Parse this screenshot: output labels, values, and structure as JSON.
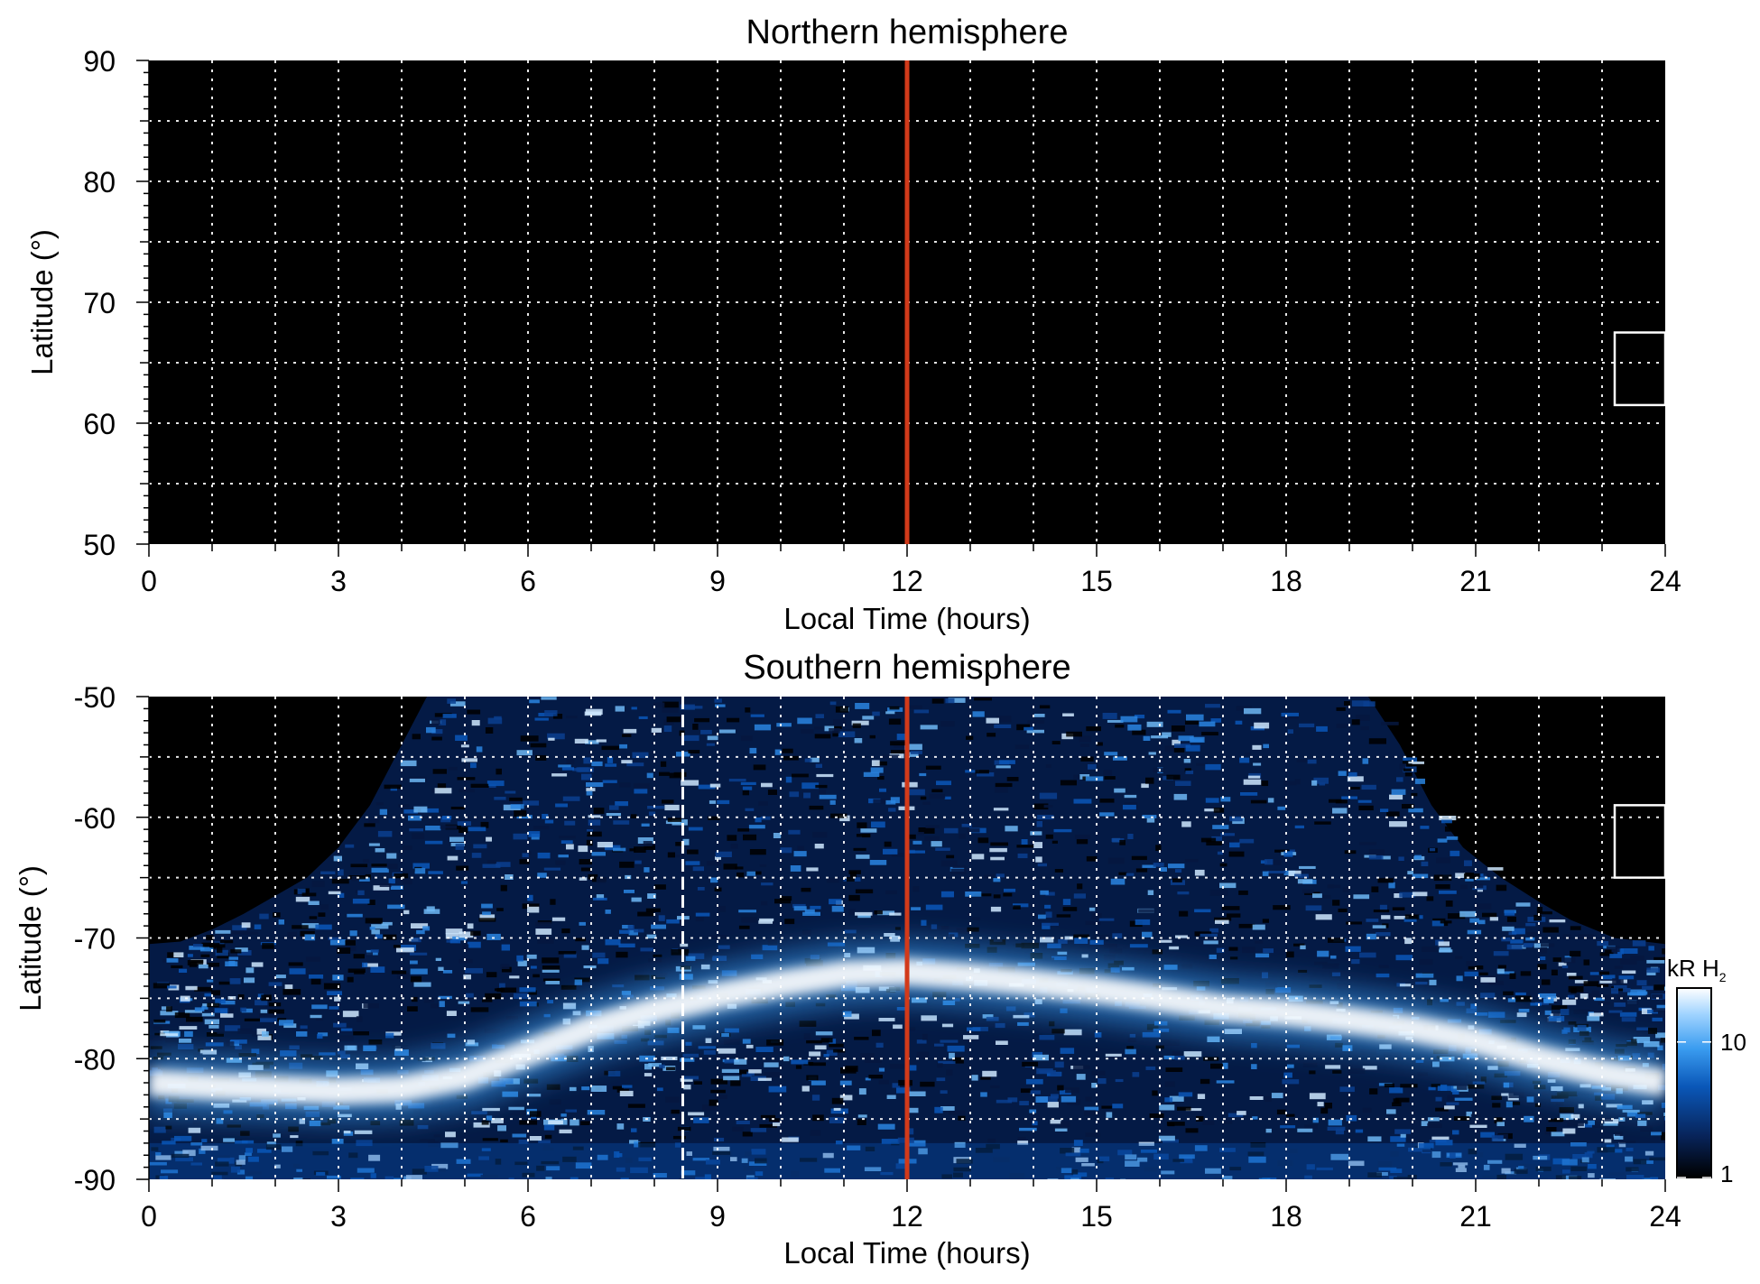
{
  "chart_data": [
    {
      "type": "heatmap",
      "title": "Northern hemisphere",
      "xlabel": "Local Time (hours)",
      "ylabel": "Latitude (°)",
      "xlim": [
        0,
        24
      ],
      "ylim": [
        50,
        90
      ],
      "xticks": [
        "0",
        "3",
        "6",
        "9",
        "12",
        "15",
        "18",
        "21",
        "24"
      ],
      "yticks": [
        "50",
        "60",
        "70",
        "80",
        "90"
      ],
      "grid": true,
      "background": "#000000",
      "noon_line_x": 12,
      "noon_line_color": "#d23a1a",
      "marker_box": {
        "x": [
          23.2,
          24
        ],
        "y": [
          61.5,
          67.5
        ]
      },
      "emission": "none"
    },
    {
      "type": "heatmap",
      "title": "Southern hemisphere",
      "xlabel": "Local Time (hours)",
      "ylabel": "Latitude (°)",
      "xlim": [
        0,
        24
      ],
      "ylim": [
        -90,
        -50
      ],
      "xticks": [
        "0",
        "3",
        "6",
        "9",
        "12",
        "15",
        "18",
        "21",
        "24"
      ],
      "yticks": [
        "-90",
        "-80",
        "-70",
        "-60",
        "-50"
      ],
      "grid": true,
      "background": "#000000",
      "noon_line_x": 12,
      "noon_line_color": "#d23a1a",
      "dashed_line_x": 8.45,
      "marker_box": {
        "x": [
          23.2,
          24
        ],
        "y": [
          -65,
          -59
        ]
      },
      "coverage_boundary": [
        {
          "x": 0,
          "y": -70.5
        },
        {
          "x": 0.5,
          "y": -70.3
        },
        {
          "x": 1,
          "y": -69.3
        },
        {
          "x": 1.5,
          "y": -68
        },
        {
          "x": 2,
          "y": -66.5
        },
        {
          "x": 2.5,
          "y": -65
        },
        {
          "x": 3,
          "y": -62.5
        },
        {
          "x": 3.5,
          "y": -59
        },
        {
          "x": 4,
          "y": -54
        },
        {
          "x": 4.4,
          "y": -50
        },
        {
          "x": 19.3,
          "y": -50
        },
        {
          "x": 19.8,
          "y": -54
        },
        {
          "x": 20.3,
          "y": -59
        },
        {
          "x": 20.8,
          "y": -62.5
        },
        {
          "x": 21.4,
          "y": -65
        },
        {
          "x": 22,
          "y": -67
        },
        {
          "x": 22.5,
          "y": -68.5
        },
        {
          "x": 23.2,
          "y": -70
        },
        {
          "x": 24,
          "y": -70.5
        }
      ],
      "auroral_oval": [
        {
          "x": 0,
          "y": -82
        },
        {
          "x": 1,
          "y": -82.3
        },
        {
          "x": 2,
          "y": -82.5
        },
        {
          "x": 3,
          "y": -82.7
        },
        {
          "x": 4,
          "y": -82.5
        },
        {
          "x": 5,
          "y": -81.5
        },
        {
          "x": 6,
          "y": -79.5
        },
        {
          "x": 7,
          "y": -77.5
        },
        {
          "x": 8,
          "y": -76
        },
        {
          "x": 9,
          "y": -74.8
        },
        {
          "x": 10,
          "y": -73.8
        },
        {
          "x": 11,
          "y": -73
        },
        {
          "x": 12,
          "y": -72.8
        },
        {
          "x": 13,
          "y": -73.2
        },
        {
          "x": 14,
          "y": -73.7
        },
        {
          "x": 15,
          "y": -74.3
        },
        {
          "x": 16,
          "y": -75
        },
        {
          "x": 17,
          "y": -75.8
        },
        {
          "x": 18,
          "y": -76.2
        },
        {
          "x": 19,
          "y": -76.8
        },
        {
          "x": 20,
          "y": -77.5
        },
        {
          "x": 21,
          "y": -78.5
        },
        {
          "x": 22,
          "y": -80
        },
        {
          "x": 23,
          "y": -81.2
        },
        {
          "x": 24,
          "y": -82
        }
      ]
    }
  ],
  "colorbar": {
    "label_main": "kR H",
    "label_sub": "2",
    "ticks": [
      "1",
      "10"
    ],
    "tick_values": [
      1,
      10
    ],
    "range": [
      1,
      25
    ],
    "scale": "log",
    "colors": [
      "#000000",
      "#08245a",
      "#0a57b8",
      "#3a9cf0",
      "#9fd3ff",
      "#ffffff"
    ]
  }
}
